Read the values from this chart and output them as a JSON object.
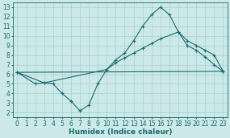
{
  "background_color": "#cde8e8",
  "grid_color": "#aad4d4",
  "line_color": "#1a6b6b",
  "marker": "+",
  "markersize": 3,
  "linewidth": 0.8,
  "xlabel": "Humidex (Indice chaleur)",
  "xlabel_fontsize": 6.5,
  "tick_fontsize": 5.5,
  "xlim": [
    -0.5,
    23.5
  ],
  "ylim": [
    1.5,
    13.5
  ],
  "xticks": [
    0,
    1,
    2,
    3,
    4,
    5,
    6,
    7,
    8,
    9,
    10,
    11,
    12,
    13,
    14,
    15,
    16,
    17,
    18,
    19,
    20,
    21,
    22,
    23
  ],
  "yticks": [
    2,
    3,
    4,
    5,
    6,
    7,
    8,
    9,
    10,
    11,
    12,
    13
  ],
  "line1_x": [
    0,
    23
  ],
  "line1_y": [
    6.2,
    6.3
  ],
  "line2_x": [
    0,
    3,
    10,
    11,
    12,
    13,
    14,
    15,
    16,
    18,
    19,
    20,
    21,
    22,
    23
  ],
  "line2_y": [
    6.2,
    5.1,
    6.5,
    7.2,
    7.7,
    8.2,
    8.7,
    9.2,
    9.7,
    10.4,
    9.5,
    9.0,
    8.5,
    8.0,
    6.3
  ],
  "line3_x": [
    0,
    2,
    3,
    4,
    5,
    6,
    7,
    8,
    9,
    10,
    11,
    12,
    13,
    14,
    15,
    16,
    17,
    18,
    19,
    20,
    21,
    22,
    23
  ],
  "line3_y": [
    6.2,
    5.0,
    5.1,
    5.0,
    4.0,
    3.2,
    2.2,
    2.8,
    5.0,
    6.5,
    7.5,
    8.2,
    9.5,
    11.0,
    12.2,
    13.0,
    12.2,
    10.4,
    9.0,
    8.5,
    7.8,
    7.0,
    6.3
  ]
}
